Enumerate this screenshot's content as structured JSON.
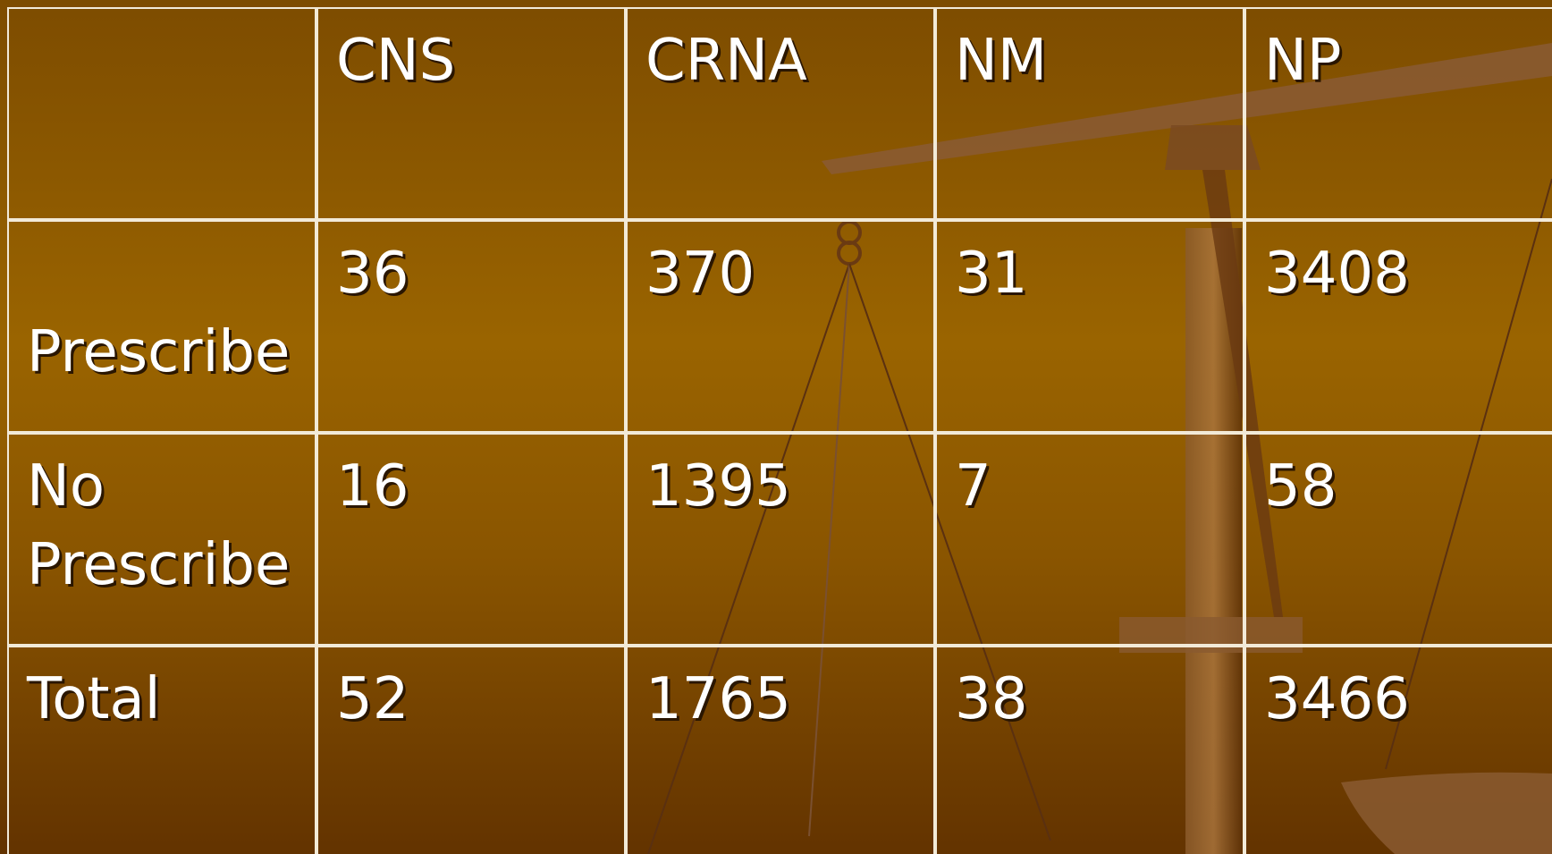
{
  "table": {
    "columns": [
      "CNS",
      "CRNA",
      "NM",
      "NP"
    ],
    "rows": [
      {
        "label": "Prescribe",
        "cells": [
          36,
          370,
          31,
          3408
        ]
      },
      {
        "label": "No Prescribe",
        "cells": [
          16,
          1395,
          7,
          58
        ]
      },
      {
        "label": "Total",
        "cells": [
          52,
          1765,
          38,
          3466
        ]
      }
    ]
  }
}
